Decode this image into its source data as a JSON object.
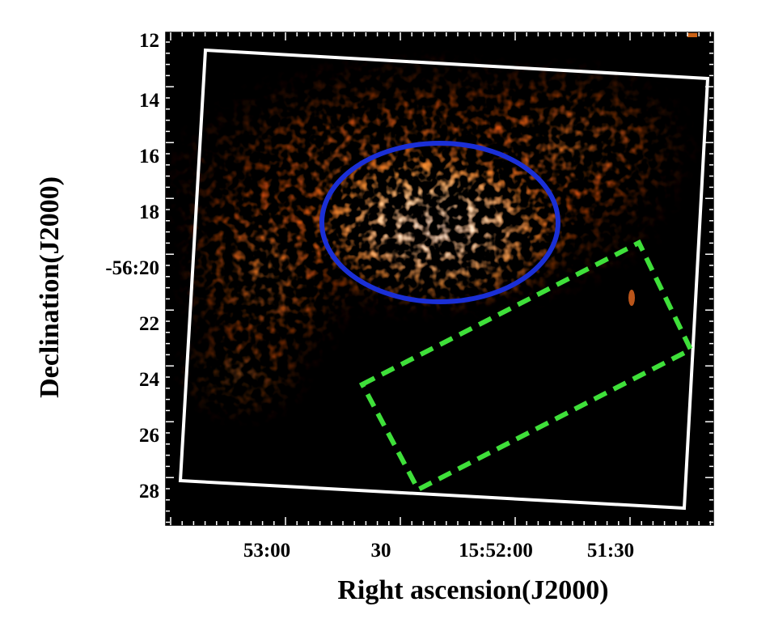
{
  "figure": {
    "xlabel": "Right ascension(J2000)",
    "ylabel": "Declination(J2000)",
    "x_tick_labels": [
      "53:00",
      "30",
      "15:52:00",
      "51:30"
    ],
    "y_tick_labels": [
      "12",
      "14",
      "16",
      "18",
      "-56:20",
      "22",
      "24",
      "26",
      "28"
    ],
    "colors": {
      "background": "#000000",
      "emission": "#ff7a1a",
      "emission_core": "#fff4e0",
      "fov_outline": "#ffffff",
      "source_region": "#1a2fd6",
      "background_region": "#3fe03a"
    },
    "regions": [
      {
        "name": "field-of-view",
        "shape": "rotated-square",
        "style": "solid",
        "color": "white"
      },
      {
        "name": "source-region",
        "shape": "ellipse",
        "style": "solid",
        "color": "blue"
      },
      {
        "name": "background-region",
        "shape": "rotated-rectangle",
        "style": "dashed",
        "color": "green"
      }
    ]
  }
}
